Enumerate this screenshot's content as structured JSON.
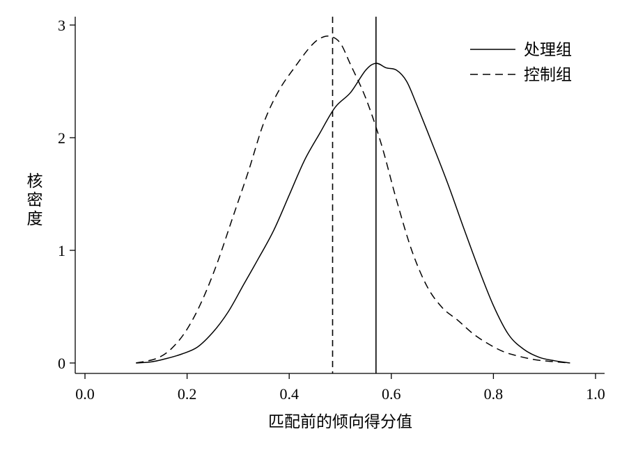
{
  "chart_data": {
    "type": "line",
    "title": "",
    "xlabel": "匹配前的倾向得分值",
    "ylabel": "核密度",
    "xlim": [
      0.0,
      1.0
    ],
    "ylim": [
      0,
      3
    ],
    "xticks": [
      0.0,
      0.2,
      0.4,
      0.6,
      0.8,
      1.0
    ],
    "xtick_labels": [
      "0.0",
      "0.2",
      "0.4",
      "0.6",
      "0.8",
      "1.0"
    ],
    "yticks": [
      0,
      1,
      2,
      3
    ],
    "ytick_labels": [
      "0",
      "1",
      "2",
      "3"
    ],
    "grid": false,
    "legend_position": "top-right",
    "series": [
      {
        "name": "处理组",
        "style": "solid",
        "color": "#000000",
        "mean": 0.57,
        "x": [
          0.1,
          0.13,
          0.16,
          0.19,
          0.22,
          0.25,
          0.28,
          0.31,
          0.34,
          0.37,
          0.4,
          0.43,
          0.46,
          0.49,
          0.52,
          0.55,
          0.57,
          0.59,
          0.61,
          0.63,
          0.65,
          0.68,
          0.71,
          0.74,
          0.77,
          0.8,
          0.83,
          0.86,
          0.89,
          0.92,
          0.95
        ],
        "y": [
          0.0,
          0.01,
          0.04,
          0.08,
          0.14,
          0.27,
          0.45,
          0.69,
          0.93,
          1.18,
          1.49,
          1.8,
          2.04,
          2.27,
          2.4,
          2.6,
          2.66,
          2.62,
          2.6,
          2.5,
          2.29,
          1.95,
          1.6,
          1.22,
          0.85,
          0.51,
          0.25,
          0.12,
          0.05,
          0.02,
          0.0
        ]
      },
      {
        "name": "控制组",
        "style": "dashed",
        "color": "#000000",
        "mean": 0.485,
        "x": [
          0.1,
          0.14,
          0.17,
          0.2,
          0.23,
          0.26,
          0.29,
          0.32,
          0.35,
          0.38,
          0.41,
          0.44,
          0.46,
          0.48,
          0.5,
          0.52,
          0.55,
          0.58,
          0.61,
          0.64,
          0.67,
          0.7,
          0.73,
          0.76,
          0.79,
          0.82,
          0.85,
          0.88,
          0.91,
          0.95
        ],
        "y": [
          0.0,
          0.04,
          0.13,
          0.3,
          0.56,
          0.9,
          1.3,
          1.7,
          2.13,
          2.42,
          2.62,
          2.8,
          2.88,
          2.9,
          2.84,
          2.65,
          2.35,
          1.95,
          1.45,
          1.0,
          0.68,
          0.49,
          0.38,
          0.26,
          0.17,
          0.1,
          0.06,
          0.03,
          0.015,
          0.0
        ]
      }
    ]
  }
}
